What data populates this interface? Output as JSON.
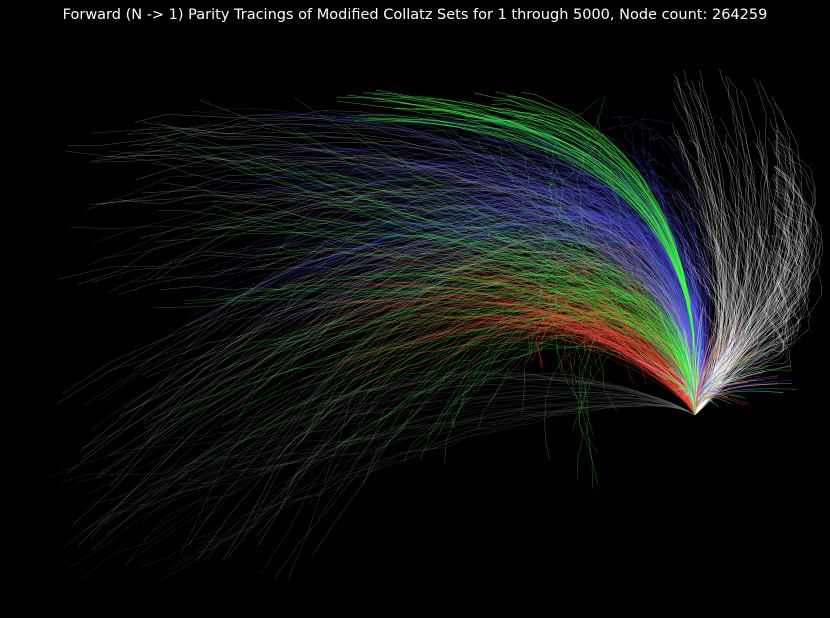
{
  "title": "Forward (N -> 1) Parity Tracings of Modified Collatz Sets for 1 through 5000, Node count: 264259",
  "chart_data": {
    "type": "line",
    "title": "Forward (N -> 1) Parity Tracings of Modified Collatz Sets for 1 through 5000, Node count: 264259",
    "range_start": 1,
    "range_end": 5000,
    "node_count": 264259,
    "axes_visible": false,
    "background": "#000000",
    "series_colors": {
      "white": "#ffffff",
      "blue": "#5a5aff",
      "green": "#40ff40",
      "red": "#ff4a3a"
    }
  }
}
